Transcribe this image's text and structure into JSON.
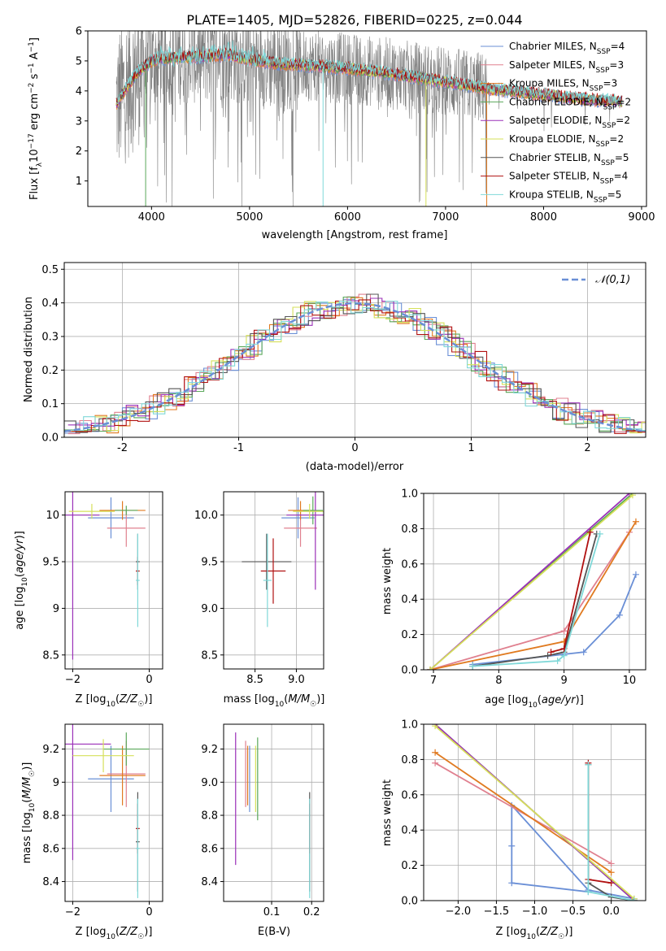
{
  "title": "PLATE=1405, MJD=52826, FIBERID=0225, z=0.044",
  "colors": {
    "c0": "#6a8fd6",
    "c1": "#e0808f",
    "c2": "#6a8fd6",
    "c3": "#5aa85a",
    "c4": "#9b30b8",
    "c5": "#d6e05a",
    "c6": "#555555",
    "c7": "#b01010",
    "c8": "#7fd8d8",
    "orange": "#e07a20",
    "pink": "#e080c0",
    "grey": "#808080"
  },
  "legend": [
    {
      "pre": "Chabrier MILES, N",
      "n": "4",
      "color": "#6a8fd6"
    },
    {
      "pre": "Salpeter MILES, N",
      "n": "3",
      "color": "#e0808f"
    },
    {
      "pre": "Kroupa MILES, N",
      "n": "3",
      "color": "#e07a20"
    },
    {
      "pre": "Chabrier ELODIE, N",
      "n": "2",
      "color": "#5aa85a"
    },
    {
      "pre": "Salpeter ELODIE, N",
      "n": "2",
      "color": "#9b30b8"
    },
    {
      "pre": "Kroupa ELODIE, N",
      "n": "2",
      "color": "#d6e05a"
    },
    {
      "pre": "Chabrier STELIB, N",
      "n": "5",
      "color": "#555555"
    },
    {
      "pre": "Salpeter STELIB, N",
      "n": "4",
      "color": "#b01010"
    },
    {
      "pre": "Kroupa STELIB, N",
      "n": "5",
      "color": "#7fd8d8"
    }
  ],
  "legend_sub": "SSP",
  "axes": {
    "spec_x": "wavelength [Angstrom, rest frame]",
    "spec_y_pre": "Flux [f",
    "spec_y_mid": "10",
    "spec_y_post": " erg cm",
    "spec_y_end": " s",
    "spec_y_A": " A",
    "hist_x": "(data-model)/error",
    "hist_y": "Normed distribution",
    "hist_legend": "𝒩(0,1)",
    "age_y": "age  [log10(age/yr)]",
    "z_x": "Z [log10(Z/Z☉)]",
    "mass_x": "mass [log10(M/M☉)]",
    "mass_y": "mass [log10(M/M☉)]",
    "ebv_x": "E(B-V)",
    "mw_y": "mass weight",
    "age_x": "age  [log10(age/yr)]"
  },
  "chart_data": [
    {
      "type": "line",
      "title": "PLATE=1405, MJD=52826, FIBERID=0225, z=0.044",
      "xlabel": "wavelength [Angstrom, rest frame]",
      "ylabel": "Flux [fλ 10^-17 erg cm^-2 s^-1 A^-1]",
      "xlim": [
        3350,
        9050
      ],
      "ylim": [
        0.15,
        6.0
      ],
      "xticks": [
        4000,
        5000,
        6000,
        7000,
        8000,
        9000
      ],
      "yticks": [
        1,
        2,
        3,
        4,
        5,
        6
      ],
      "continuum": {
        "x": [
          3650,
          3700,
          3850,
          4000,
          4200,
          4500,
          4800,
          5000,
          5300,
          5600,
          6000,
          6400,
          6800,
          7200,
          7500,
          7800,
          8200,
          8500,
          8800
        ],
        "y": [
          3.6,
          3.9,
          4.6,
          5.0,
          5.1,
          5.15,
          5.2,
          5.05,
          4.9,
          4.85,
          4.75,
          4.6,
          4.4,
          4.2,
          4.05,
          3.95,
          3.8,
          3.7,
          3.65
        ]
      },
      "legend": [
        "Chabrier MILES, N_SSP=4",
        "Salpeter MILES, N_SSP=3",
        "Kroupa MILES, N_SSP=3",
        "Chabrier ELODIE, N_SSP=2",
        "Salpeter ELODIE, N_SSP=2",
        "Kroupa ELODIE, N_SSP=2",
        "Chabrier STELIB, N_SSP=5",
        "Salpeter STELIB, N_SSP=4",
        "Kroupa STELIB, N_SSP=5"
      ]
    },
    {
      "type": "bar",
      "xlabel": "(data-model)/error",
      "ylabel": "Normed distribution",
      "xlim": [
        -2.5,
        2.5
      ],
      "ylim": [
        0,
        0.52
      ],
      "xticks": [
        -2,
        -1,
        0,
        1,
        2
      ],
      "yticks": [
        0.0,
        0.1,
        0.2,
        0.3,
        0.4,
        0.5
      ],
      "legend": [
        "𝒩(0,1)"
      ]
    },
    {
      "type": "scatter",
      "xlabel": "Z [log10(Z/Z☉)]",
      "ylabel": "age [log10(age/yr)]",
      "xlim": [
        -2.2,
        0.35
      ],
      "ylim": [
        8.35,
        10.25
      ],
      "xticks": [
        -2,
        0
      ],
      "yticks": [
        8.5,
        9.0,
        9.5,
        10.0
      ],
      "points": [
        {
          "x": -1.0,
          "y": 9.97,
          "xe": 0.6,
          "ye": 0.22,
          "c": "#6a8fd6"
        },
        {
          "x": -0.6,
          "y": 9.86,
          "xe": 0.5,
          "ye": 0.2,
          "c": "#e0808f"
        },
        {
          "x": -0.7,
          "y": 10.05,
          "xe": 0.6,
          "ye": 0.1,
          "c": "#e07a20"
        },
        {
          "x": -0.6,
          "y": 10.05,
          "xe": 0.3,
          "ye": 0.05,
          "c": "#5aa85a"
        },
        {
          "x": -2.0,
          "y": 10.0,
          "xe": 0.7,
          "ye": 1.55,
          "c": "#9b30b8"
        },
        {
          "x": -1.5,
          "y": 10.04,
          "xe": 0.6,
          "ye": 0.08,
          "c": "#d6e05a"
        },
        {
          "x": -0.3,
          "y": 9.5,
          "xe": 0.05,
          "ye": 0.3,
          "c": "#555555"
        },
        {
          "x": -0.3,
          "y": 9.4,
          "xe": 0.05,
          "ye": 0.15,
          "c": "#b01010"
        },
        {
          "x": -0.3,
          "y": 9.3,
          "xe": 0.05,
          "ye": 0.5,
          "c": "#7fd8d8"
        }
      ]
    },
    {
      "type": "scatter",
      "xlabel": "mass [log10(M/M☉)]",
      "ylabel": "",
      "xlim": [
        8.12,
        9.33
      ],
      "ylim": [
        8.35,
        10.25
      ],
      "xticks": [
        8.5,
        9.0
      ],
      "yticks": [
        8.5,
        9.0,
        9.5,
        10.0
      ],
      "points": [
        {
          "x": 9.02,
          "y": 9.97,
          "xe": 0.2,
          "ye": 0.22,
          "c": "#6a8fd6"
        },
        {
          "x": 9.05,
          "y": 9.86,
          "xe": 0.2,
          "ye": 0.2,
          "c": "#e0808f"
        },
        {
          "x": 9.05,
          "y": 10.05,
          "xe": 0.15,
          "ye": 0.1,
          "c": "#e07a20"
        },
        {
          "x": 9.2,
          "y": 10.05,
          "xe": 0.12,
          "ye": 0.15,
          "c": "#5aa85a"
        },
        {
          "x": 9.23,
          "y": 10.0,
          "xe": 0.35,
          "ye": 0.8,
          "c": "#9b30b8"
        },
        {
          "x": 9.16,
          "y": 10.04,
          "xe": 0.2,
          "ye": 0.08,
          "c": "#d6e05a"
        },
        {
          "x": 8.64,
          "y": 9.5,
          "xe": 0.3,
          "ye": 0.3,
          "c": "#555555"
        },
        {
          "x": 8.72,
          "y": 9.4,
          "xe": 0.15,
          "ye": 0.35,
          "c": "#b01010"
        },
        {
          "x": 8.65,
          "y": 9.3,
          "xe": 0.05,
          "ye": 0.5,
          "c": "#7fd8d8"
        }
      ]
    },
    {
      "type": "line",
      "xlabel": "age [log10(age/yr)]",
      "ylabel": "mass weight",
      "xlim": [
        6.85,
        10.25
      ],
      "ylim": [
        0,
        1.0
      ],
      "xticks": [
        7,
        8,
        9,
        10
      ],
      "yticks": [
        0.0,
        0.2,
        0.4,
        0.6,
        0.8,
        1.0
      ],
      "series": [
        {
          "c": "#6a8fd6",
          "x": [
            7.6,
            9.3,
            9.85,
            10.1
          ],
          "y": [
            0.03,
            0.1,
            0.31,
            0.54
          ]
        },
        {
          "c": "#e0808f",
          "x": [
            6.95,
            9.0,
            10.0
          ],
          "y": [
            0.0,
            0.22,
            0.78
          ]
        },
        {
          "c": "#e07a20",
          "x": [
            6.95,
            9.0,
            10.1
          ],
          "y": [
            0.0,
            0.16,
            0.84
          ]
        },
        {
          "c": "#5aa85a",
          "x": [
            6.95,
            10.05
          ],
          "y": [
            0.0,
            1.0
          ]
        },
        {
          "c": "#9b30b8",
          "x": [
            6.95,
            10.0
          ],
          "y": [
            0.0,
            1.0
          ]
        },
        {
          "c": "#d6e05a",
          "x": [
            6.95,
            10.05
          ],
          "y": [
            0.0,
            0.99
          ]
        },
        {
          "c": "#555555",
          "x": [
            7.6,
            8.75,
            9.0,
            9.5
          ],
          "y": [
            0.02,
            0.08,
            0.1,
            0.77
          ]
        },
        {
          "c": "#b01010",
          "x": [
            8.8,
            9.0,
            9.4
          ],
          "y": [
            0.1,
            0.12,
            0.78
          ]
        },
        {
          "c": "#7fd8d8",
          "x": [
            7.6,
            8.9,
            9.0,
            9.55
          ],
          "y": [
            0.02,
            0.05,
            0.08,
            0.77
          ]
        }
      ]
    },
    {
      "type": "scatter",
      "xlabel": "Z [log10(Z/Z☉)]",
      "ylabel": "mass [log10(M/M☉)]",
      "xlim": [
        -2.2,
        0.35
      ],
      "ylim": [
        8.28,
        9.35
      ],
      "xticks": [
        -2,
        0
      ],
      "yticks": [
        8.4,
        8.6,
        8.8,
        9.0,
        9.2
      ],
      "points": [
        {
          "x": -1.0,
          "y": 9.02,
          "xe": 0.6,
          "ye": 0.2,
          "c": "#6a8fd6"
        },
        {
          "x": -0.6,
          "y": 9.05,
          "xe": 0.5,
          "ye": 0.2,
          "c": "#e0808f"
        },
        {
          "x": -0.7,
          "y": 9.04,
          "xe": 0.6,
          "ye": 0.18,
          "c": "#e07a20"
        },
        {
          "x": -0.6,
          "y": 9.2,
          "xe": 0.6,
          "ye": 0.1,
          "c": "#5aa85a"
        },
        {
          "x": -2.0,
          "y": 9.23,
          "xe": 1.0,
          "ye": 0.7,
          "c": "#9b30b8"
        },
        {
          "x": -1.2,
          "y": 9.16,
          "xe": 0.8,
          "ye": 0.1,
          "c": "#d6e05a"
        },
        {
          "x": -0.3,
          "y": 8.64,
          "xe": 0.05,
          "ye": 0.3,
          "c": "#555555"
        },
        {
          "x": -0.3,
          "y": 8.72,
          "xe": 0.05,
          "ye": 0.15,
          "c": "#b01010"
        },
        {
          "x": -0.3,
          "y": 8.6,
          "xe": 0.05,
          "ye": 0.3,
          "c": "#7fd8d8"
        }
      ]
    },
    {
      "type": "scatter",
      "xlabel": "E(B-V)",
      "ylabel": "",
      "xlim": [
        -0.02,
        0.23
      ],
      "ylim": [
        8.28,
        9.35
      ],
      "xticks": [
        0.1,
        0.2
      ],
      "yticks": [
        8.4,
        8.6,
        8.8,
        9.0,
        9.2
      ],
      "points": [
        {
          "x": 0.045,
          "y": 9.02,
          "xe": 0,
          "ye": 0.2,
          "c": "#6a8fd6"
        },
        {
          "x": 0.035,
          "y": 9.05,
          "xe": 0,
          "ye": 0.2,
          "c": "#e0808f"
        },
        {
          "x": 0.04,
          "y": 9.04,
          "xe": 0,
          "ye": 0.18,
          "c": "#e07a20"
        },
        {
          "x": 0.065,
          "y": 9.02,
          "xe": 0,
          "ye": 0.25,
          "c": "#5aa85a"
        },
        {
          "x": 0.01,
          "y": 8.9,
          "xe": 0,
          "ye": 0.4,
          "c": "#9b30b8"
        },
        {
          "x": 0.06,
          "y": 9.02,
          "xe": 0,
          "ye": 0.2,
          "c": "#d6e05a"
        },
        {
          "x": 0.195,
          "y": 8.64,
          "xe": 0,
          "ye": 0.3,
          "c": "#555555"
        },
        {
          "x": 0.195,
          "y": 8.72,
          "xe": 0,
          "ye": 0.15,
          "c": "#b01010"
        },
        {
          "x": 0.195,
          "y": 8.6,
          "xe": 0,
          "ye": 0.3,
          "c": "#7fd8d8"
        }
      ]
    },
    {
      "type": "line",
      "xlabel": "Z [log10(Z/Z☉)]",
      "ylabel": "mass weight",
      "xlim": [
        -2.45,
        0.45
      ],
      "ylim": [
        0,
        1.0
      ],
      "xticks": [
        -2.0,
        -1.5,
        -1.0,
        -0.5,
        0.0
      ],
      "yticks": [
        0.0,
        0.2,
        0.4,
        0.6,
        0.8,
        1.0
      ],
      "series": [
        {
          "c": "#6a8fd6",
          "x": [
            -0.3,
            -1.3,
            -1.3,
            -1.3,
            -0.3,
            0.3
          ],
          "y": [
            0.05,
            0.1,
            0.31,
            0.54,
            0.06,
            0.01
          ]
        },
        {
          "c": "#e0808f",
          "x": [
            -2.3,
            0.0
          ],
          "y": [
            0.78,
            0.21
          ]
        },
        {
          "c": "#e07a20",
          "x": [
            -2.3,
            0.0
          ],
          "y": [
            0.84,
            0.16
          ]
        },
        {
          "c": "#5aa85a",
          "x": [
            -2.3,
            0.3
          ],
          "y": [
            1.0,
            0.0
          ]
        },
        {
          "c": "#9b30b8",
          "x": [
            -2.3,
            0.3
          ],
          "y": [
            1.0,
            0.0
          ]
        },
        {
          "c": "#d6e05a",
          "x": [
            -2.3,
            0.3
          ],
          "y": [
            0.99,
            0.01
          ]
        },
        {
          "c": "#555555",
          "x": [
            -0.3,
            -0.3,
            0.0,
            0.3
          ],
          "y": [
            0.77,
            0.1,
            0.02,
            0.0
          ]
        },
        {
          "c": "#b01010",
          "x": [
            -0.3,
            -0.3,
            0.0
          ],
          "y": [
            0.78,
            0.12,
            0.1
          ]
        },
        {
          "c": "#7fd8d8",
          "x": [
            -0.3,
            -0.3,
            0.3
          ],
          "y": [
            0.77,
            0.05,
            0.0
          ]
        }
      ]
    }
  ]
}
